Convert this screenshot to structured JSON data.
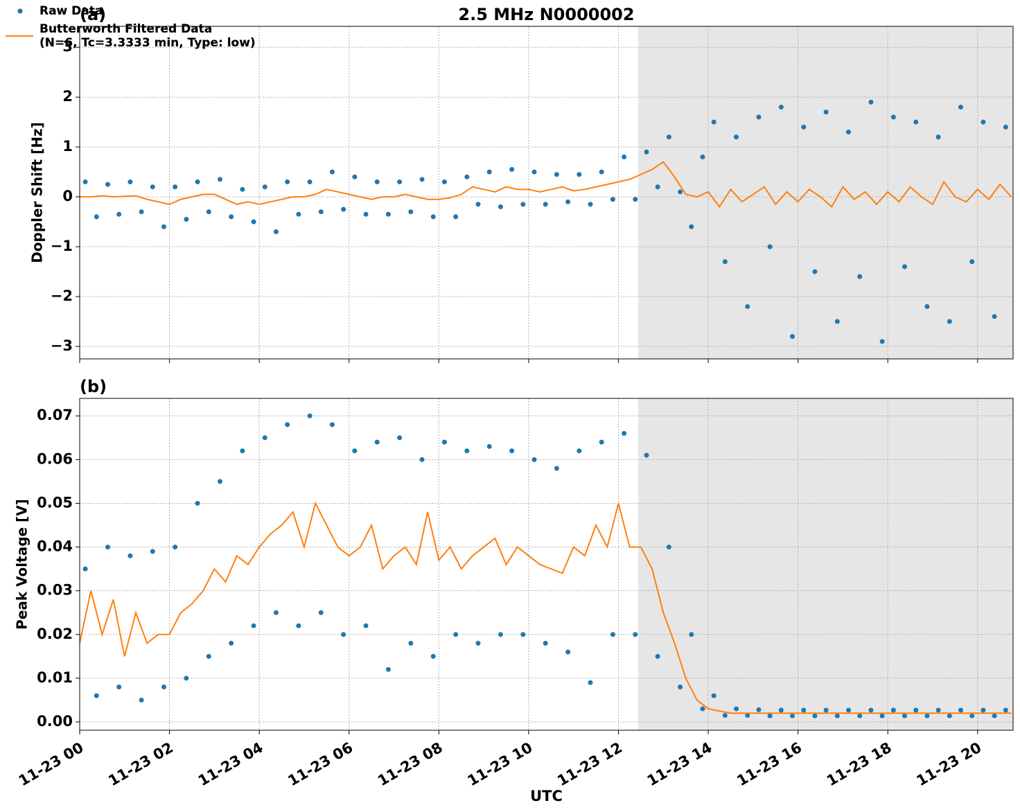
{
  "chart_data": [
    {
      "type": "scatter-line",
      "title": "2.5 MHz N0000002",
      "panel_label": "(a)",
      "ylabel": "Doppler Shift [Hz]",
      "xlim": [
        0,
        20.79
      ],
      "ylim": [
        -3.25,
        3.42
      ],
      "xticks": [
        0,
        2,
        4,
        6,
        8,
        10,
        12,
        14,
        16,
        18,
        20
      ],
      "yticks": [
        {
          "value": -3,
          "label": "−3"
        },
        {
          "value": -2,
          "label": "−2"
        },
        {
          "value": -1,
          "label": "−1"
        },
        0,
        1,
        2,
        3
      ],
      "grid": true,
      "shade_from": 12.44,
      "shade_color": "#e6e6e6",
      "legend": "upper right",
      "series": [
        {
          "name": "Raw Data",
          "kind": "scatter",
          "color": "#1f77b4",
          "x": [
            0.125,
            0.375,
            0.625,
            0.875,
            1.125,
            1.375,
            1.625,
            1.875,
            2.125,
            2.375,
            2.625,
            2.875,
            3.125,
            3.375,
            3.625,
            3.875,
            4.125,
            4.375,
            4.625,
            4.875,
            5.125,
            5.375,
            5.625,
            5.875,
            6.125,
            6.375,
            6.625,
            6.875,
            7.125,
            7.375,
            7.625,
            7.875,
            8.125,
            8.375,
            8.625,
            8.875,
            9.125,
            9.375,
            9.625,
            9.875,
            10.125,
            10.375,
            10.625,
            10.875,
            11.125,
            11.375,
            11.625,
            11.875,
            12.125,
            12.375,
            12.625,
            12.875,
            13.125,
            13.375,
            13.625,
            13.875,
            14.125,
            14.375,
            14.625,
            14.875,
            15.125,
            15.375,
            15.625,
            15.875,
            16.125,
            16.375,
            16.625,
            16.875,
            17.125,
            17.375,
            17.625,
            17.875,
            18.125,
            18.375,
            18.625,
            18.875,
            19.125,
            19.375,
            19.625,
            19.875,
            20.125,
            20.375,
            20.625
          ],
          "values": [
            0.3,
            -0.4,
            0.25,
            -0.35,
            0.3,
            -0.3,
            0.2,
            -0.6,
            0.2,
            -0.45,
            0.3,
            -0.3,
            0.35,
            -0.4,
            0.15,
            -0.5,
            0.2,
            -0.7,
            0.3,
            -0.35,
            0.3,
            -0.3,
            0.5,
            -0.25,
            0.4,
            -0.35,
            0.3,
            -0.35,
            0.3,
            -0.3,
            0.35,
            -0.4,
            0.3,
            -0.4,
            0.4,
            -0.15,
            0.5,
            -0.2,
            0.55,
            -0.15,
            0.5,
            -0.15,
            0.45,
            -0.1,
            0.45,
            -0.15,
            0.5,
            -0.05,
            0.8,
            -0.05,
            0.9,
            0.2,
            1.2,
            0.1,
            -0.6,
            0.8,
            1.5,
            -1.3,
            1.2,
            -2.2,
            1.6,
            -1.0,
            1.8,
            -2.8,
            1.4,
            -1.5,
            1.7,
            -2.5,
            1.3,
            -1.6,
            1.9,
            -2.9,
            1.6,
            -1.4,
            1.5,
            -2.2,
            1.2,
            -2.5,
            1.8,
            -1.3,
            1.5,
            -2.4,
            1.4
          ]
        },
        {
          "name": "Butterworth Filtered Data\n(N=6, Tc=3.3333 min, Type: low)",
          "kind": "line",
          "color": "#ff7f0e",
          "x": [
            0,
            0.25,
            0.5,
            0.75,
            1,
            1.25,
            1.5,
            1.75,
            2,
            2.25,
            2.5,
            2.75,
            3,
            3.25,
            3.5,
            3.75,
            4,
            4.25,
            4.5,
            4.75,
            5,
            5.25,
            5.5,
            5.75,
            6,
            6.25,
            6.5,
            6.75,
            7,
            7.25,
            7.5,
            7.75,
            8,
            8.25,
            8.5,
            8.75,
            9,
            9.25,
            9.5,
            9.75,
            10,
            10.25,
            10.5,
            10.75,
            11,
            11.25,
            11.5,
            11.75,
            12,
            12.25,
            12.5,
            12.75,
            13,
            13.25,
            13.5,
            13.75,
            14,
            14.25,
            14.5,
            14.75,
            15,
            15.25,
            15.5,
            15.75,
            16,
            16.25,
            16.5,
            16.75,
            17,
            17.25,
            17.5,
            17.75,
            18,
            18.25,
            18.5,
            18.75,
            19,
            19.25,
            19.5,
            19.75,
            20,
            20.25,
            20.5,
            20.75
          ],
          "values": [
            0,
            0,
            0.02,
            0,
            0.01,
            0.02,
            -0.05,
            -0.1,
            -0.15,
            -0.05,
            0,
            0.05,
            0.05,
            -0.05,
            -0.15,
            -0.1,
            -0.15,
            -0.1,
            -0.05,
            0,
            0,
            0.05,
            0.15,
            0.1,
            0.05,
            0,
            -0.05,
            0,
            0,
            0.05,
            0,
            -0.05,
            -0.05,
            -0.02,
            0.05,
            0.2,
            0.15,
            0.1,
            0.2,
            0.15,
            0.15,
            0.1,
            0.15,
            0.2,
            0.12,
            0.15,
            0.2,
            0.25,
            0.3,
            0.35,
            0.45,
            0.55,
            0.7,
            0.4,
            0.05,
            0,
            0.1,
            -0.2,
            0.15,
            -0.1,
            0.05,
            0.2,
            -0.15,
            0.1,
            -0.1,
            0.15,
            0,
            -0.2,
            0.2,
            -0.05,
            0.1,
            -0.15,
            0.1,
            -0.1,
            0.2,
            0,
            -0.15,
            0.3,
            0,
            -0.1,
            0.15,
            -0.05,
            0.25,
            0
          ]
        }
      ]
    },
    {
      "type": "scatter-line",
      "panel_label": "(b)",
      "ylabel": "Peak Voltage [V]",
      "xlabel": "UTC",
      "xlim": [
        0,
        20.79
      ],
      "ylim": [
        -0.0019,
        0.074
      ],
      "xticks": [
        {
          "value": 0,
          "label": "11-23 00"
        },
        {
          "value": 2,
          "label": "11-23 02"
        },
        {
          "value": 4,
          "label": "11-23 04"
        },
        {
          "value": 6,
          "label": "11-23 06"
        },
        {
          "value": 8,
          "label": "11-23 08"
        },
        {
          "value": 10,
          "label": "11-23 10"
        },
        {
          "value": 12,
          "label": "11-23 12"
        },
        {
          "value": 14,
          "label": "11-23 14"
        },
        {
          "value": 16,
          "label": "11-23 16"
        },
        {
          "value": 18,
          "label": "11-23 18"
        },
        {
          "value": 20,
          "label": "11-23 20"
        }
      ],
      "yticks": [
        {
          "value": 0,
          "label": "0.00"
        },
        {
          "value": 0.01,
          "label": "0.01"
        },
        {
          "value": 0.02,
          "label": "0.02"
        },
        {
          "value": 0.03,
          "label": "0.03"
        },
        {
          "value": 0.04,
          "label": "0.04"
        },
        {
          "value": 0.05,
          "label": "0.05"
        },
        {
          "value": 0.06,
          "label": "0.06"
        },
        {
          "value": 0.07,
          "label": "0.07"
        }
      ],
      "grid": true,
      "shade_from": 12.44,
      "shade_color": "#e6e6e6",
      "legend": "upper right",
      "series": [
        {
          "name": "Raw Data",
          "kind": "scatter",
          "color": "#1f77b4",
          "x": [
            0.125,
            0.375,
            0.625,
            0.875,
            1.125,
            1.375,
            1.625,
            1.875,
            2.125,
            2.375,
            2.625,
            2.875,
            3.125,
            3.375,
            3.625,
            3.875,
            4.125,
            4.375,
            4.625,
            4.875,
            5.125,
            5.375,
            5.625,
            5.875,
            6.125,
            6.375,
            6.625,
            6.875,
            7.125,
            7.375,
            7.625,
            7.875,
            8.125,
            8.375,
            8.625,
            8.875,
            9.125,
            9.375,
            9.625,
            9.875,
            10.125,
            10.375,
            10.625,
            10.875,
            11.125,
            11.375,
            11.625,
            11.875,
            12.125,
            12.375,
            12.625,
            12.875,
            13.125,
            13.375,
            13.625,
            13.875,
            14.125,
            14.375,
            14.625,
            14.875,
            15.125,
            15.375,
            15.625,
            15.875,
            16.125,
            16.375,
            16.625,
            16.875,
            17.125,
            17.375,
            17.625,
            17.875,
            18.125,
            18.375,
            18.625,
            18.875,
            19.125,
            19.375,
            19.625,
            19.875,
            20.125,
            20.375,
            20.625
          ],
          "values": [
            0.035,
            0.006,
            0.04,
            0.008,
            0.038,
            0.005,
            0.039,
            0.008,
            0.04,
            0.01,
            0.05,
            0.015,
            0.055,
            0.018,
            0.062,
            0.022,
            0.065,
            0.025,
            0.068,
            0.022,
            0.07,
            0.025,
            0.068,
            0.02,
            0.062,
            0.022,
            0.064,
            0.012,
            0.065,
            0.018,
            0.06,
            0.015,
            0.064,
            0.02,
            0.062,
            0.018,
            0.063,
            0.02,
            0.062,
            0.02,
            0.06,
            0.018,
            0.058,
            0.016,
            0.062,
            0.009,
            0.064,
            0.02,
            0.066,
            0.02,
            0.061,
            0.015,
            0.04,
            0.008,
            0.02,
            0.003,
            0.006,
            0.0015,
            0.003,
            0.0015,
            0.0028,
            0.0014,
            0.0027,
            0.0014,
            0.0027,
            0.0014,
            0.0027,
            0.0014,
            0.0027,
            0.0014,
            0.0027,
            0.0014,
            0.0027,
            0.0014,
            0.0027,
            0.0014,
            0.0027,
            0.0014,
            0.0027,
            0.0014,
            0.0027,
            0.0014,
            0.0027
          ]
        },
        {
          "name": "Butterworth Filtered Data\n(N=6, Tc=3.3333 min, Type: low)",
          "kind": "line",
          "color": "#ff7f0e",
          "x": [
            0,
            0.25,
            0.5,
            0.75,
            1,
            1.25,
            1.5,
            1.75,
            2,
            2.25,
            2.5,
            2.75,
            3,
            3.25,
            3.5,
            3.75,
            4,
            4.25,
            4.5,
            4.75,
            5,
            5.25,
            5.5,
            5.75,
            6,
            6.25,
            6.5,
            6.75,
            7,
            7.25,
            7.5,
            7.75,
            8,
            8.25,
            8.5,
            8.75,
            9,
            9.25,
            9.5,
            9.75,
            10,
            10.25,
            10.5,
            10.75,
            11,
            11.25,
            11.5,
            11.75,
            12,
            12.25,
            12.5,
            12.75,
            13,
            13.25,
            13.5,
            13.75,
            14,
            14.25,
            14.5,
            14.75,
            15,
            15.25,
            15.5,
            15.75,
            16,
            16.25,
            16.5,
            16.75,
            17,
            17.25,
            17.5,
            17.75,
            18,
            18.25,
            18.5,
            18.75,
            19,
            19.25,
            19.5,
            19.75,
            20,
            20.25,
            20.5,
            20.75
          ],
          "values": [
            0.018,
            0.03,
            0.02,
            0.028,
            0.015,
            0.025,
            0.018,
            0.02,
            0.02,
            0.025,
            0.027,
            0.03,
            0.035,
            0.032,
            0.038,
            0.036,
            0.04,
            0.043,
            0.045,
            0.048,
            0.04,
            0.05,
            0.045,
            0.04,
            0.038,
            0.04,
            0.045,
            0.035,
            0.038,
            0.04,
            0.036,
            0.048,
            0.037,
            0.04,
            0.035,
            0.038,
            0.04,
            0.042,
            0.036,
            0.04,
            0.038,
            0.036,
            0.035,
            0.034,
            0.04,
            0.038,
            0.045,
            0.04,
            0.05,
            0.04,
            0.04,
            0.035,
            0.025,
            0.018,
            0.01,
            0.005,
            0.003,
            0.0025,
            0.002,
            0.002,
            0.002,
            0.002,
            0.002,
            0.002,
            0.002,
            0.002,
            0.002,
            0.002,
            0.002,
            0.002,
            0.002,
            0.002,
            0.002,
            0.002,
            0.002,
            0.002,
            0.002,
            0.002,
            0.002,
            0.002,
            0.002,
            0.002,
            0.002,
            0.002
          ]
        }
      ]
    }
  ]
}
